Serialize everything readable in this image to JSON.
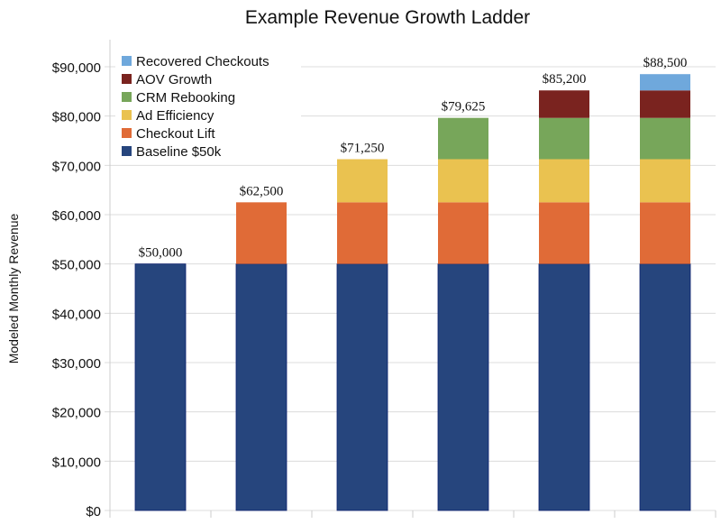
{
  "chart_data": {
    "type": "bar",
    "stacked": true,
    "title": "Example Revenue Growth Ladder",
    "xlabel": "",
    "ylabel": "Modeled Monthly Revenue",
    "ylim": [
      0,
      90000
    ],
    "yticks": [
      0,
      10000,
      20000,
      30000,
      40000,
      50000,
      60000,
      70000,
      80000,
      90000
    ],
    "ytick_labels": [
      "$0",
      "$10,000",
      "$20,000",
      "$30,000",
      "$40,000",
      "$50,000",
      "$60,000",
      "$70,000",
      "$80,000",
      "$90,000"
    ],
    "grid": "horizontal",
    "legend_placement": "top-left",
    "categories": [
      "",
      "",
      "",
      "",
      "",
      ""
    ],
    "series": [
      {
        "name": "Baseline $50k",
        "color": "#26457d",
        "values": [
          50000,
          50000,
          50000,
          50000,
          50000,
          50000
        ]
      },
      {
        "name": "Checkout Lift",
        "color": "#e06b37",
        "values": [
          0,
          12500,
          12500,
          12500,
          12500,
          12500
        ]
      },
      {
        "name": "Ad Efficiency",
        "color": "#eac250",
        "values": [
          0,
          0,
          8750,
          8750,
          8750,
          8750
        ]
      },
      {
        "name": "CRM Rebooking",
        "color": "#77a65a",
        "values": [
          0,
          0,
          0,
          8375,
          8375,
          8375
        ]
      },
      {
        "name": "AOV Growth",
        "color": "#7a231f",
        "values": [
          0,
          0,
          0,
          0,
          5575,
          5575
        ]
      },
      {
        "name": "Recovered Checkouts",
        "color": "#6fa8dc",
        "values": [
          0,
          0,
          0,
          0,
          0,
          3300
        ]
      }
    ],
    "data_labels": [
      "$50,000",
      "$62,500",
      "$71,250",
      "$79,625",
      "$85,200",
      "$88,500"
    ],
    "totals": [
      50000,
      62500,
      71250,
      79625,
      85200,
      88500
    ]
  }
}
